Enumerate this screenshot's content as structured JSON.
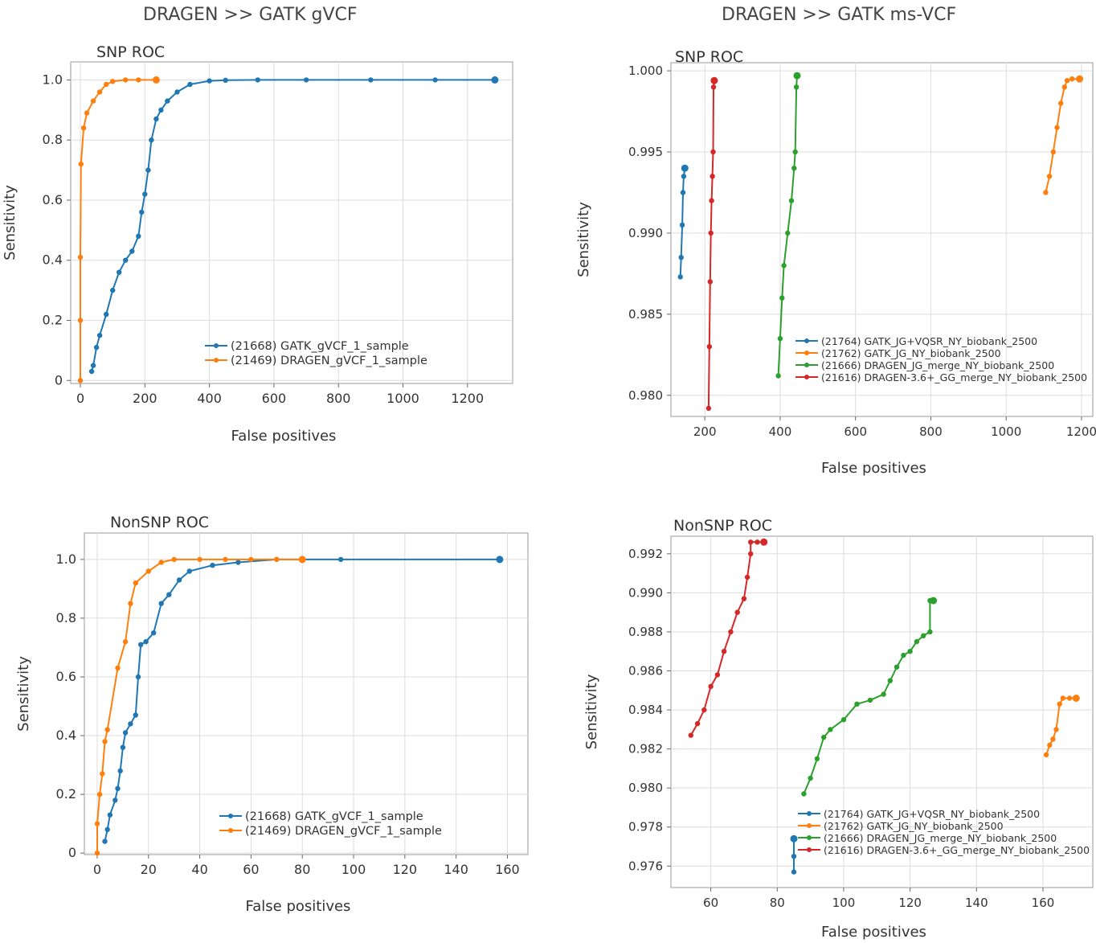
{
  "sections": {
    "left_title": "DRAGEN >> GATK gVCF",
    "right_title": "DRAGEN >> GATK ms-VCF"
  },
  "colors": {
    "blue": "#1f77b4",
    "orange": "#ff7f0e",
    "green": "#2ca02c",
    "red": "#d62728",
    "grid": "#dcdcdc",
    "frame": "#999999"
  },
  "chart_data": [
    {
      "id": "gvcf-snp",
      "type": "line",
      "title": "SNP ROC",
      "xlabel": "False positives",
      "ylabel": "Sensitivity",
      "xlim": [
        -30,
        1340
      ],
      "ylim": [
        -0.01,
        1.06
      ],
      "xticks": [
        0,
        200,
        400,
        600,
        800,
        1000,
        1200
      ],
      "xtick_labels": [
        "0",
        "200",
        "400",
        "600",
        "800",
        "1000",
        "1200"
      ],
      "yticks": [
        0,
        0.2,
        0.4,
        0.6,
        0.8,
        1.0
      ],
      "ytick_labels": [
        "0",
        "0.2",
        "0.4",
        "0.6",
        "0.8",
        "1.0"
      ],
      "legend_position": "bottom-right",
      "series": [
        {
          "name": "(21668) GATK_gVCF_1_sample",
          "color": "#1f77b4",
          "points": [
            [
              35,
              0.03
            ],
            [
              40,
              0.05
            ],
            [
              50,
              0.11
            ],
            [
              60,
              0.15
            ],
            [
              80,
              0.22
            ],
            [
              100,
              0.3
            ],
            [
              120,
              0.36
            ],
            [
              140,
              0.4
            ],
            [
              160,
              0.43
            ],
            [
              180,
              0.48
            ],
            [
              190,
              0.56
            ],
            [
              200,
              0.62
            ],
            [
              210,
              0.7
            ],
            [
              220,
              0.8
            ],
            [
              235,
              0.87
            ],
            [
              250,
              0.9
            ],
            [
              270,
              0.93
            ],
            [
              300,
              0.96
            ],
            [
              340,
              0.985
            ],
            [
              400,
              0.997
            ],
            [
              450,
              0.999
            ],
            [
              550,
              1.0
            ],
            [
              700,
              1.0
            ],
            [
              900,
              1.0
            ],
            [
              1100,
              1.0
            ],
            [
              1285,
              1.0
            ]
          ]
        },
        {
          "name": "(21469) DRAGEN_gVCF_1_sample",
          "color": "#ff7f0e",
          "points": [
            [
              0,
              0.0
            ],
            [
              0,
              0.2
            ],
            [
              0,
              0.41
            ],
            [
              2,
              0.72
            ],
            [
              10,
              0.84
            ],
            [
              20,
              0.89
            ],
            [
              40,
              0.93
            ],
            [
              60,
              0.96
            ],
            [
              80,
              0.985
            ],
            [
              100,
              0.995
            ],
            [
              140,
              1.0
            ],
            [
              180,
              1.0
            ],
            [
              235,
              1.0
            ]
          ]
        }
      ]
    },
    {
      "id": "msvcf-snp",
      "type": "line",
      "title": "SNP ROC",
      "xlabel": "False positives",
      "ylabel": "Sensitivity",
      "xlim": [
        110,
        1230
      ],
      "ylim": [
        0.9787,
        1.0005
      ],
      "xticks": [
        200,
        400,
        600,
        800,
        1000,
        1200
      ],
      "xtick_labels": [
        "200",
        "400",
        "600",
        "800",
        "1000",
        "1200"
      ],
      "yticks": [
        0.98,
        0.985,
        0.99,
        0.995,
        1.0
      ],
      "ytick_labels": [
        "0.980",
        "0.985",
        "0.990",
        "0.995",
        "1.000"
      ],
      "legend_position": "bottom-right",
      "series": [
        {
          "name": "(21764) GATK_JG+VQSR_NY_biobank_2500",
          "color": "#1f77b4",
          "points": [
            [
              135,
              0.9873
            ],
            [
              137,
              0.9885
            ],
            [
              140,
              0.9905
            ],
            [
              142,
              0.9925
            ],
            [
              144,
              0.9935
            ],
            [
              147,
              0.994
            ]
          ]
        },
        {
          "name": "(21762) GATK_JG_NY_biobank_2500",
          "color": "#ff7f0e",
          "points": [
            [
              1105,
              0.9925
            ],
            [
              1115,
              0.9935
            ],
            [
              1125,
              0.995
            ],
            [
              1135,
              0.9965
            ],
            [
              1145,
              0.998
            ],
            [
              1155,
              0.999
            ],
            [
              1162,
              0.9994
            ],
            [
              1175,
              0.9995
            ],
            [
              1195,
              0.9995
            ]
          ]
        },
        {
          "name": "(21666) DRAGEN_JG_merge_NY_biobank_2500",
          "color": "#2ca02c",
          "points": [
            [
              395,
              0.9812
            ],
            [
              400,
              0.9835
            ],
            [
              405,
              0.986
            ],
            [
              410,
              0.988
            ],
            [
              420,
              0.99
            ],
            [
              430,
              0.992
            ],
            [
              437,
              0.994
            ],
            [
              440,
              0.995
            ],
            [
              443,
              0.999
            ],
            [
              445,
              0.9997
            ]
          ]
        },
        {
          "name": "(21616) DRAGEN-3.6+_GG_merge_NY_biobank_2500",
          "color": "#d62728",
          "points": [
            [
              210,
              0.9792
            ],
            [
              212,
              0.983
            ],
            [
              214,
              0.987
            ],
            [
              216,
              0.99
            ],
            [
              218,
              0.992
            ],
            [
              220,
              0.9935
            ],
            [
              222,
              0.995
            ],
            [
              223,
              0.999
            ],
            [
              225,
              0.9994
            ]
          ]
        }
      ]
    },
    {
      "id": "gvcf-nonsnp",
      "type": "line",
      "title": "NonSNP ROC",
      "xlabel": "False positives",
      "ylabel": "Sensitivity",
      "xlim": [
        -5,
        168
      ],
      "ylim": [
        -0.005,
        1.09
      ],
      "xticks": [
        0,
        20,
        40,
        60,
        80,
        100,
        120,
        140,
        160
      ],
      "xtick_labels": [
        "0",
        "20",
        "40",
        "60",
        "80",
        "100",
        "120",
        "140",
        "160"
      ],
      "yticks": [
        0,
        0.2,
        0.4,
        0.6,
        0.8,
        1.0
      ],
      "ytick_labels": [
        "0",
        "0.2",
        "0.4",
        "0.6",
        "0.8",
        "1.0"
      ],
      "legend_position": "bottom-right",
      "series": [
        {
          "name": "(21668) GATK_gVCF_1_sample",
          "color": "#1f77b4",
          "points": [
            [
              3,
              0.04
            ],
            [
              4,
              0.08
            ],
            [
              5,
              0.13
            ],
            [
              7,
              0.18
            ],
            [
              8,
              0.22
            ],
            [
              9,
              0.28
            ],
            [
              10,
              0.36
            ],
            [
              11,
              0.41
            ],
            [
              13,
              0.44
            ],
            [
              15,
              0.47
            ],
            [
              16,
              0.6
            ],
            [
              17,
              0.71
            ],
            [
              19,
              0.72
            ],
            [
              22,
              0.75
            ],
            [
              25,
              0.85
            ],
            [
              28,
              0.88
            ],
            [
              32,
              0.93
            ],
            [
              36,
              0.96
            ],
            [
              45,
              0.98
            ],
            [
              55,
              0.99
            ],
            [
              70,
              1.0
            ],
            [
              80,
              1.0
            ],
            [
              95,
              1.0
            ],
            [
              157,
              1.0
            ]
          ]
        },
        {
          "name": "(21469) DRAGEN_gVCF_1_sample",
          "color": "#ff7f0e",
          "points": [
            [
              0,
              0.0
            ],
            [
              0,
              0.1
            ],
            [
              1,
              0.2
            ],
            [
              2,
              0.27
            ],
            [
              3,
              0.38
            ],
            [
              4,
              0.42
            ],
            [
              8,
              0.63
            ],
            [
              11,
              0.72
            ],
            [
              13,
              0.85
            ],
            [
              15,
              0.92
            ],
            [
              20,
              0.96
            ],
            [
              25,
              0.99
            ],
            [
              30,
              1.0
            ],
            [
              40,
              1.0
            ],
            [
              50,
              1.0
            ],
            [
              60,
              1.0
            ],
            [
              70,
              1.0
            ],
            [
              80,
              1.0
            ]
          ]
        }
      ]
    },
    {
      "id": "msvcf-nonsnp",
      "type": "line",
      "title": "NonSNP ROC",
      "xlabel": "False positives",
      "ylabel": "Sensitivity",
      "xlim": [
        48,
        175
      ],
      "ylim": [
        0.9749,
        0.9929
      ],
      "xticks": [
        60,
        80,
        100,
        120,
        140,
        160
      ],
      "xtick_labels": [
        "60",
        "80",
        "100",
        "120",
        "140",
        "160"
      ],
      "yticks": [
        0.976,
        0.978,
        0.98,
        0.982,
        0.984,
        0.986,
        0.988,
        0.99,
        0.992
      ],
      "ytick_labels": [
        "0.976",
        "0.978",
        "0.980",
        "0.982",
        "0.984",
        "0.986",
        "0.988",
        "0.990",
        "0.992"
      ],
      "legend_position": "bottom-right",
      "series": [
        {
          "name": "(21764) GATK_JG+VQSR_NY_biobank_2500",
          "color": "#1f77b4",
          "points": [
            [
              85,
              0.9757
            ],
            [
              85,
              0.9765
            ],
            [
              85,
              0.9774
            ]
          ]
        },
        {
          "name": "(21762) GATK_JG_NY_biobank_2500",
          "color": "#ff7f0e",
          "points": [
            [
              161,
              0.9817
            ],
            [
              162,
              0.9822
            ],
            [
              163,
              0.9825
            ],
            [
              164,
              0.983
            ],
            [
              165,
              0.9843
            ],
            [
              166,
              0.9846
            ],
            [
              168,
              0.9846
            ],
            [
              170,
              0.9846
            ]
          ]
        },
        {
          "name": "(21666) DRAGEN_JG_merge_NY_biobank_2500",
          "color": "#2ca02c",
          "points": [
            [
              88,
              0.9797
            ],
            [
              90,
              0.9805
            ],
            [
              92,
              0.9815
            ],
            [
              94,
              0.9826
            ],
            [
              96,
              0.983
            ],
            [
              100,
              0.9835
            ],
            [
              104,
              0.9843
            ],
            [
              108,
              0.9845
            ],
            [
              112,
              0.9848
            ],
            [
              114,
              0.9855
            ],
            [
              116,
              0.9862
            ],
            [
              118,
              0.9868
            ],
            [
              120,
              0.987
            ],
            [
              122,
              0.9875
            ],
            [
              124,
              0.9878
            ],
            [
              126,
              0.988
            ],
            [
              126,
              0.9896
            ],
            [
              127,
              0.9896
            ]
          ]
        },
        {
          "name": "(21616) DRAGEN-3.6+_GG_merge_NY_biobank_2500",
          "color": "#d62728",
          "points": [
            [
              54,
              0.9827
            ],
            [
              56,
              0.9833
            ],
            [
              58,
              0.984
            ],
            [
              60,
              0.9852
            ],
            [
              62,
              0.9858
            ],
            [
              64,
              0.987
            ],
            [
              66,
              0.988
            ],
            [
              68,
              0.989
            ],
            [
              70,
              0.9897
            ],
            [
              71,
              0.9908
            ],
            [
              72,
              0.992
            ],
            [
              72,
              0.9926
            ],
            [
              74,
              0.9926
            ],
            [
              76,
              0.9926
            ]
          ]
        }
      ]
    }
  ]
}
